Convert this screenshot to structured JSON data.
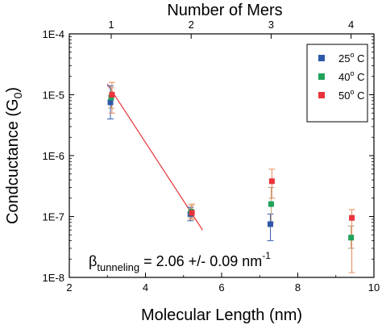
{
  "chart_data": {
    "type": "scatter",
    "xlabel": "Molecular Length (nm)",
    "ylabel": "Condcuctance (G",
    "ylabel_sub": "0",
    "ylabel_end": ")",
    "x2label": "Number of Mers",
    "xlim": [
      2,
      10
    ],
    "ylim": [
      1e-08,
      0.0001
    ],
    "yscale": "log",
    "x_ticks": [
      2,
      4,
      6,
      8,
      10
    ],
    "x_tick_labels": [
      "2",
      "4",
      "6",
      "8",
      "10"
    ],
    "y_ticks": [
      1e-08,
      1e-07,
      1e-06,
      1e-05,
      0.0001
    ],
    "y_tick_labels": [
      "1E-8",
      "1E-7",
      "1E-6",
      "1E-5",
      "1E-4"
    ],
    "top_ticks": [
      {
        "x": 3.1,
        "label": "1"
      },
      {
        "x": 5.2,
        "label": "2"
      },
      {
        "x": 7.3,
        "label": "3"
      },
      {
        "x": 9.4,
        "label": "4"
      }
    ],
    "legend": {
      "position": "top-right"
    },
    "series": [
      {
        "name": "25° C",
        "name_base": "25",
        "name_deg": "o",
        "name_unit": " C",
        "color": "#2e58a8",
        "points": [
          {
            "x": 3.08,
            "y": 7.5e-06,
            "ylo": 4e-06,
            "yhi": 1.4e-05
          },
          {
            "x": 5.18,
            "y": 1.1e-07,
            "ylo": 8.5e-08,
            "yhi": 1.4e-07
          },
          {
            "x": 7.28,
            "y": 7.5e-08,
            "ylo": 4e-08,
            "yhi": 1.1e-07
          }
        ]
      },
      {
        "name": "40° C",
        "name_base": "40",
        "name_deg": "o",
        "name_unit": " C",
        "color": "#21a35b",
        "points": [
          {
            "x": 3.1,
            "y": 9e-06,
            "ylo": 6e-06,
            "yhi": 1.3e-05
          },
          {
            "x": 5.2,
            "y": 1.2e-07,
            "ylo": 9.5e-08,
            "yhi": 1.5e-07
          },
          {
            "x": 7.3,
            "y": 1.6e-07,
            "ylo": 8e-08,
            "yhi": 3e-07
          },
          {
            "x": 9.4,
            "y": 4.5e-08,
            "ylo": 3e-08,
            "yhi": 7e-08
          }
        ]
      },
      {
        "name": "50° C",
        "name_base": "50",
        "name_deg": "o",
        "name_unit": " C",
        "color": "#e8343a",
        "points": [
          {
            "x": 3.12,
            "y": 1e-05,
            "ylo": 5e-06,
            "yhi": 1.6e-05
          },
          {
            "x": 5.22,
            "y": 1.15e-07,
            "ylo": 9e-08,
            "yhi": 1.6e-07
          },
          {
            "x": 7.32,
            "y": 3.8e-07,
            "ylo": 2e-07,
            "yhi": 6e-07
          },
          {
            "x": 9.42,
            "y": 9.5e-08,
            "ylo": 1.2e-08,
            "yhi": 1.3e-07
          }
        ]
      }
    ],
    "fit_line": {
      "color": "#e8343a",
      "x": [
        3.0,
        5.5
      ],
      "y": [
        1.5e-05,
        6e-08
      ]
    },
    "annotation": {
      "beta": "β",
      "sub": "tunneling",
      "text": " = 2.06 +/- 0.09 nm",
      "sup": "-1"
    }
  }
}
